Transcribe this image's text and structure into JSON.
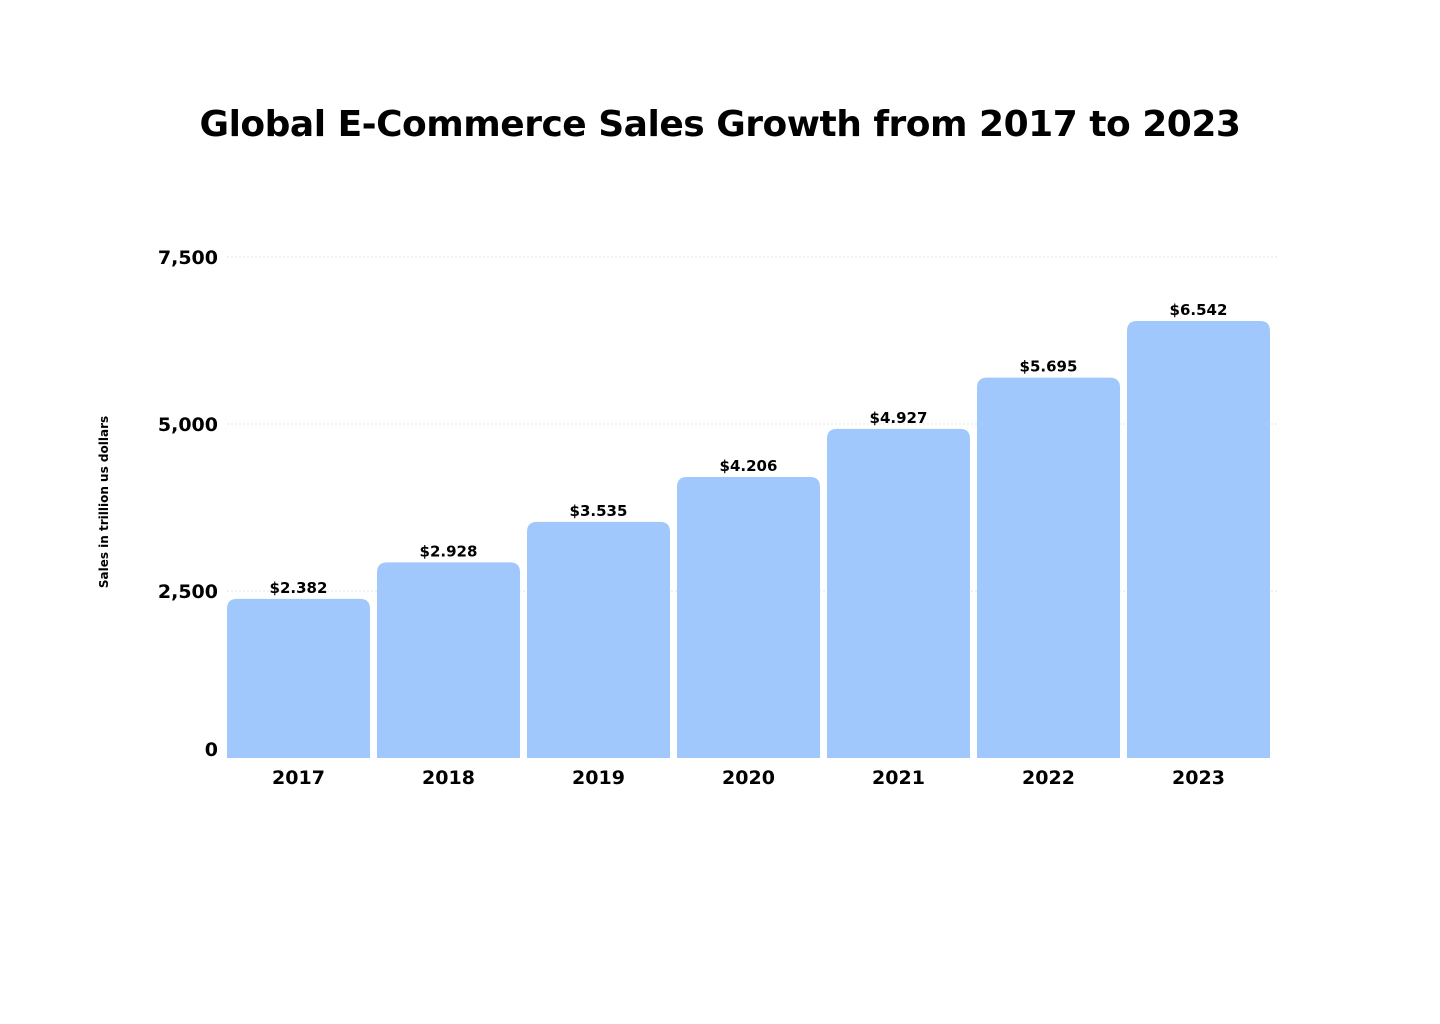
{
  "chart_data": {
    "type": "bar",
    "title": "Global E-Commerce Sales Growth from 2017 to 2023",
    "xlabel": "",
    "ylabel": "Sales in trillion us dollars",
    "categories": [
      "2017",
      "2018",
      "2019",
      "2020",
      "2021",
      "2022",
      "2023"
    ],
    "values": [
      2382,
      2928,
      3535,
      4206,
      4927,
      5695,
      6542
    ],
    "value_labels": [
      "$2.382",
      "$2.928",
      "$3.535",
      "$4.206",
      "$4.927",
      "$5.695",
      "$6.542"
    ],
    "ylim": [
      0,
      7500
    ],
    "yticks": [
      0,
      2500,
      5000,
      7500
    ],
    "ytick_labels": [
      "0",
      "2,500",
      "5,000",
      "7,500"
    ],
    "grid": true,
    "legend": "none",
    "bar_color": "#a0c8fc",
    "grid_color": "#e6e6e6"
  }
}
